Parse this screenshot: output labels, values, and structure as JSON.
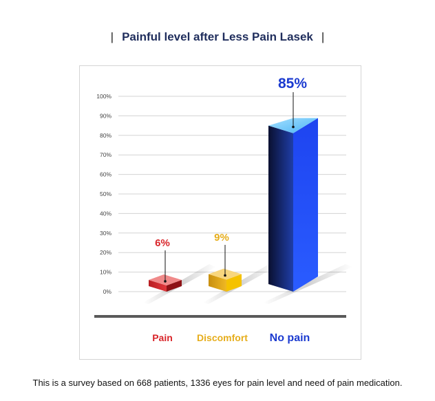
{
  "chart_data": {
    "type": "bar",
    "title": "Painful level after Less Pain Lasek",
    "categories": [
      "Pain",
      "Discomfort",
      "No pain"
    ],
    "values": [
      6,
      9,
      85
    ],
    "value_labels": [
      "6%",
      "9%",
      "85%"
    ],
    "yticks": [
      "0%",
      "10%",
      "20%",
      "30%",
      "40%",
      "50%",
      "60%",
      "70%",
      "80%",
      "90%",
      "100%"
    ],
    "ylim": [
      0,
      100
    ],
    "grid": true,
    "colors": {
      "Pain": "#d9252a",
      "Discomfort": "#e6ad1b",
      "No pain": "#1c3bd0"
    }
  },
  "footnote": "This is a survey based on 668 patients, 1336 eyes for pain level and need of pain medication."
}
